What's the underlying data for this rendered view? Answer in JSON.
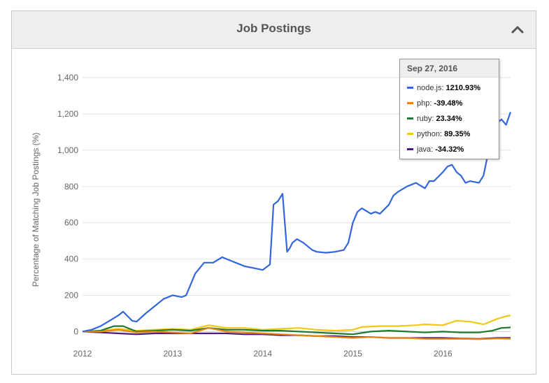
{
  "panel": {
    "title": "Job Postings",
    "collapse_icon": "chevron-up-icon"
  },
  "tooltip": {
    "date": "Sep 27, 2016",
    "rows": [
      {
        "name": "node.js",
        "value": "1210.93%",
        "color": "#3366dd"
      },
      {
        "name": "php",
        "value": "-39.48%",
        "color": "#e8850c"
      },
      {
        "name": "ruby",
        "value": "23.34%",
        "color": "#1e7a2e"
      },
      {
        "name": "python",
        "value": "89.35%",
        "color": "#f2c811"
      },
      {
        "name": "java",
        "value": "-34.32%",
        "color": "#4b1a7a"
      }
    ]
  },
  "chart_data": {
    "type": "line",
    "ylabel": "Percentage of Matching Job Postings (%)",
    "xlabel": "",
    "xlim": [
      2012.0,
      2016.75
    ],
    "ylim": [
      -60,
      1520
    ],
    "yticks": [
      0,
      200,
      400,
      600,
      800,
      1000,
      1200,
      1400
    ],
    "ytick_labels": [
      "0",
      "200",
      "400",
      "600",
      "800",
      "1,000",
      "1,200",
      "1,400"
    ],
    "xticks": [
      2012,
      2013,
      2014,
      2015,
      2016
    ],
    "xtick_labels": [
      "2012",
      "2013",
      "2014",
      "2015",
      "2016"
    ],
    "grid": true,
    "series": [
      {
        "name": "node.js",
        "color": "#3366dd",
        "x": [
          2012.0,
          2012.1,
          2012.2,
          2012.3,
          2012.4,
          2012.45,
          2012.55,
          2012.6,
          2012.7,
          2012.8,
          2012.9,
          2013.0,
          2013.1,
          2013.15,
          2013.25,
          2013.35,
          2013.45,
          2013.55,
          2013.6,
          2013.7,
          2013.8,
          2013.9,
          2013.95,
          2014.0,
          2014.08,
          2014.12,
          2014.17,
          2014.22,
          2014.27,
          2014.3,
          2014.33,
          2014.38,
          2014.45,
          2014.55,
          2014.6,
          2014.7,
          2014.8,
          2014.9,
          2014.95,
          2015.0,
          2015.05,
          2015.1,
          2015.2,
          2015.25,
          2015.3,
          2015.4,
          2015.45,
          2015.5,
          2015.6,
          2015.7,
          2015.8,
          2015.85,
          2015.9,
          2016.0,
          2016.05,
          2016.1,
          2016.15,
          2016.2,
          2016.25,
          2016.3,
          2016.4,
          2016.45,
          2016.5,
          2016.55,
          2016.6,
          2016.65,
          2016.7,
          2016.75
        ],
        "y": [
          0,
          10,
          30,
          60,
          90,
          110,
          60,
          55,
          100,
          140,
          180,
          200,
          190,
          200,
          320,
          380,
          380,
          410,
          400,
          380,
          360,
          350,
          345,
          340,
          370,
          700,
          720,
          760,
          440,
          460,
          490,
          510,
          490,
          450,
          440,
          435,
          440,
          450,
          490,
          600,
          660,
          680,
          650,
          660,
          650,
          700,
          750,
          770,
          800,
          820,
          790,
          830,
          830,
          880,
          910,
          920,
          880,
          860,
          820,
          830,
          820,
          860,
          980,
          1100,
          1150,
          1170,
          1140,
          1210
        ]
      },
      {
        "name": "php",
        "color": "#e8850c",
        "x": [
          2012.0,
          2012.2,
          2012.4,
          2012.6,
          2012.8,
          2013.0,
          2013.2,
          2013.4,
          2013.6,
          2013.8,
          2014.0,
          2014.2,
          2014.4,
          2014.6,
          2014.8,
          2015.0,
          2015.2,
          2015.4,
          2015.6,
          2015.8,
          2016.0,
          2016.2,
          2016.4,
          2016.6,
          2016.75
        ],
        "y": [
          0,
          0,
          10,
          -5,
          0,
          -5,
          -10,
          20,
          0,
          -5,
          -10,
          -15,
          -20,
          -25,
          -30,
          -35,
          -30,
          -35,
          -35,
          -40,
          -40,
          -40,
          -42,
          -38,
          -39
        ]
      },
      {
        "name": "ruby",
        "color": "#1e7a2e",
        "x": [
          2012.0,
          2012.2,
          2012.35,
          2012.45,
          2012.6,
          2012.8,
          2013.0,
          2013.2,
          2013.4,
          2013.6,
          2013.8,
          2014.0,
          2014.2,
          2014.4,
          2014.6,
          2014.8,
          2015.0,
          2015.2,
          2015.4,
          2015.6,
          2015.8,
          2016.0,
          2016.2,
          2016.4,
          2016.55,
          2016.65,
          2016.75
        ],
        "y": [
          0,
          5,
          30,
          30,
          0,
          5,
          10,
          5,
          20,
          10,
          10,
          5,
          5,
          0,
          -5,
          -10,
          -15,
          0,
          5,
          0,
          -5,
          0,
          -5,
          -5,
          5,
          20,
          23
        ]
      },
      {
        "name": "python",
        "color": "#f2c811",
        "x": [
          2012.0,
          2012.2,
          2012.4,
          2012.6,
          2012.8,
          2013.0,
          2013.2,
          2013.4,
          2013.6,
          2013.8,
          2014.0,
          2014.2,
          2014.4,
          2014.6,
          2014.8,
          2015.0,
          2015.1,
          2015.3,
          2015.5,
          2015.7,
          2015.8,
          2016.0,
          2016.15,
          2016.3,
          2016.45,
          2016.6,
          2016.7,
          2016.75
        ],
        "y": [
          0,
          5,
          15,
          5,
          10,
          15,
          10,
          35,
          20,
          20,
          10,
          15,
          20,
          10,
          5,
          10,
          25,
          30,
          30,
          35,
          40,
          35,
          60,
          55,
          40,
          70,
          85,
          89
        ]
      },
      {
        "name": "java",
        "color": "#4b1a7a",
        "x": [
          2012.0,
          2012.2,
          2012.4,
          2012.6,
          2012.8,
          2013.0,
          2013.2,
          2013.4,
          2013.6,
          2013.8,
          2014.0,
          2014.2,
          2014.4,
          2014.6,
          2014.8,
          2015.0,
          2015.2,
          2015.4,
          2015.6,
          2015.8,
          2016.0,
          2016.2,
          2016.4,
          2016.6,
          2016.75
        ],
        "y": [
          0,
          -5,
          -10,
          -15,
          -10,
          -10,
          -10,
          -10,
          -10,
          -15,
          -15,
          -20,
          -20,
          -25,
          -25,
          -30,
          -30,
          -35,
          -35,
          -35,
          -35,
          -38,
          -40,
          -35,
          -34
        ]
      }
    ]
  }
}
